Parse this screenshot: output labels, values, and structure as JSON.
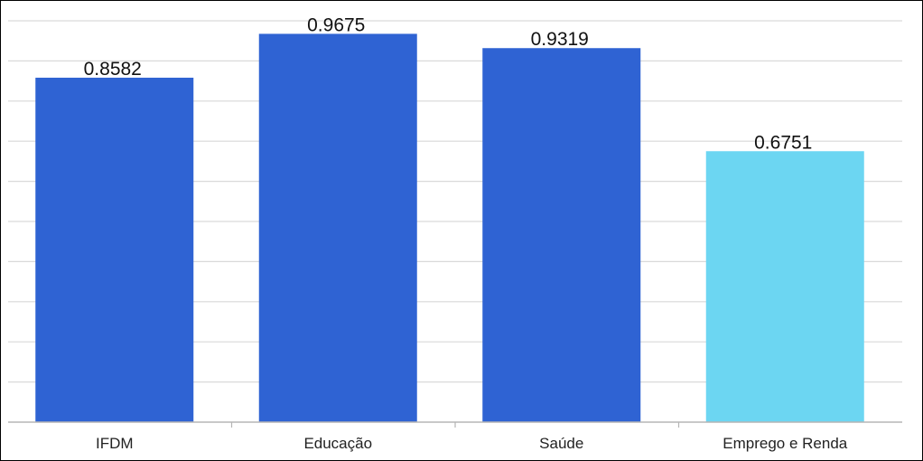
{
  "chart_data": {
    "type": "bar",
    "title": "",
    "xlabel": "",
    "ylabel": "",
    "categories": [
      "IFDM",
      "Educação",
      "Saúde",
      "Emprego e Renda"
    ],
    "values": [
      0.8582,
      0.9675,
      0.9319,
      0.6751
    ],
    "value_labels": [
      "0.8582",
      "0.9675",
      "0.9319",
      "0.6751"
    ],
    "bar_colors": [
      "#2F63D3",
      "#2F63D3",
      "#2F63D3",
      "#6CD6F2"
    ],
    "ylim": [
      0,
      1.0
    ],
    "gridlines": [
      0.1,
      0.2,
      0.3,
      0.4,
      0.5,
      0.6,
      0.7,
      0.8,
      0.9,
      1.0
    ],
    "grid": true,
    "legend": "none"
  }
}
